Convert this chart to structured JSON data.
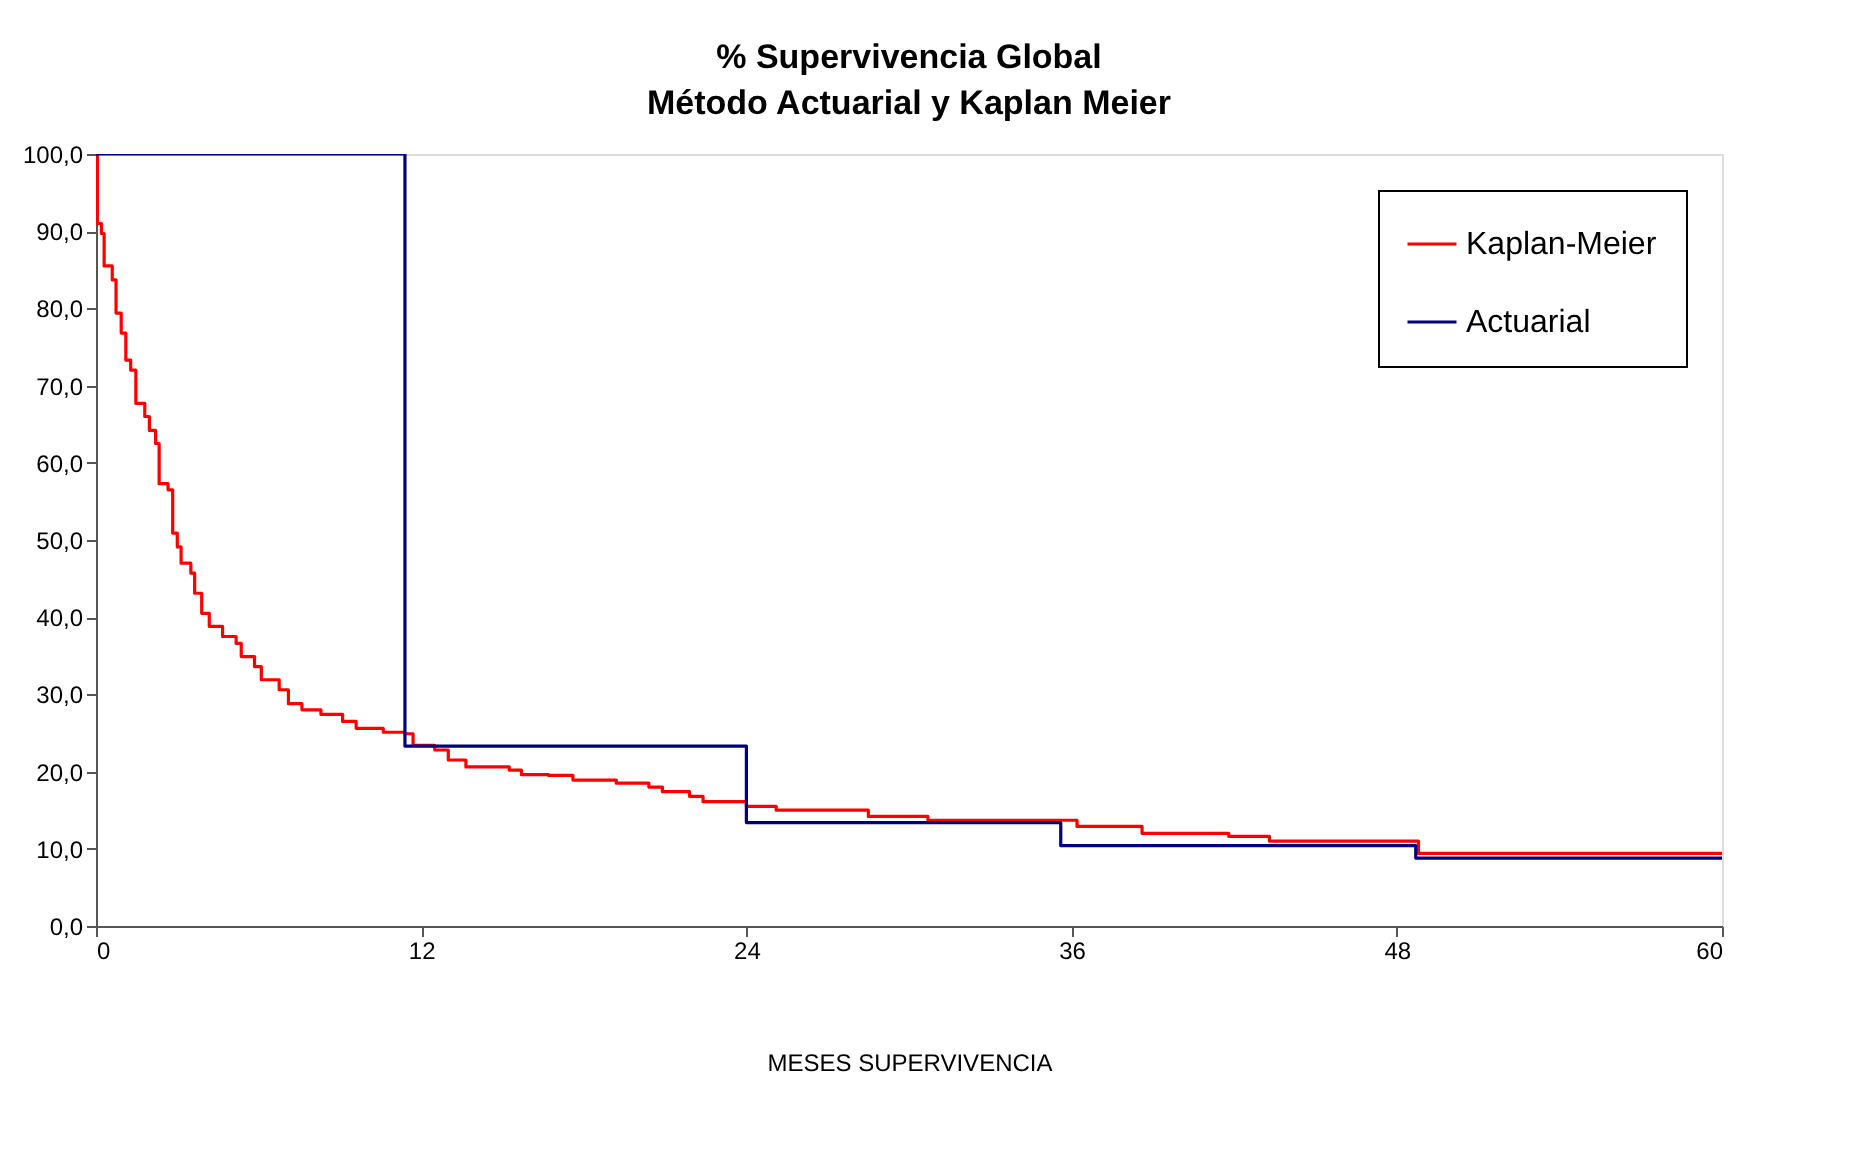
{
  "chart_data": {
    "type": "step",
    "title": "% Supervivencia Global",
    "subtitle": "Método Actuarial y Kaplan Meier",
    "xlabel": "MESES SUPERVIVENCIA",
    "xlim": [
      0,
      60
    ],
    "xticks": [
      0,
      12,
      24,
      36,
      48,
      60
    ],
    "ylim": [
      0,
      100
    ],
    "yticks": [
      {
        "value": 0,
        "label": "0,0"
      },
      {
        "value": 10,
        "label": "10,0"
      },
      {
        "value": 20,
        "label": "20,0"
      },
      {
        "value": 30,
        "label": "30,0"
      },
      {
        "value": 40,
        "label": "40,0"
      },
      {
        "value": 50,
        "label": "50,0"
      },
      {
        "value": 60,
        "label": "60,0"
      },
      {
        "value": 70,
        "label": "70,0"
      },
      {
        "value": 80,
        "label": "80,0"
      },
      {
        "value": 90,
        "label": "90,0"
      },
      {
        "value": 100,
        "label": "100,0"
      }
    ],
    "grid": false,
    "legend": "top right",
    "marker": "none",
    "line_style": "solid",
    "series": [
      {
        "name": "Kaplan-Meier",
        "color": "#ff0000",
        "x": [
          0,
          0.05,
          0.2,
          0.3,
          0.6,
          0.74,
          0.93,
          1.1,
          1.28,
          1.47,
          1.8,
          1.97,
          2.2,
          2.33,
          2.66,
          2.83,
          3.0,
          3.14,
          3.5,
          3.64,
          3.9,
          4.18,
          4.67,
          5.17,
          5.36,
          5.85,
          6.1,
          6.76,
          7.1,
          7.6,
          8.3,
          9.1,
          9.6,
          10.6,
          11.4,
          11.7,
          12.5,
          13.0,
          13.65,
          15.25,
          15.7,
          16.7,
          17.6,
          19.2,
          20.4,
          20.9,
          21.9,
          22.4,
          24.0,
          25.1,
          28.5,
          30.7,
          36.2,
          37.1,
          38.6,
          41.8,
          43.3,
          48.8,
          60
        ],
        "values": [
          100,
          91,
          89.7,
          85.5,
          83.7,
          79.4,
          76.8,
          73.3,
          72,
          67.7,
          66,
          64.2,
          62.5,
          57.3,
          56.5,
          50.9,
          49.1,
          47,
          45.7,
          43.1,
          40.5,
          38.8,
          37.5,
          36.6,
          34.9,
          33.6,
          31.9,
          30.6,
          28.8,
          28,
          27.4,
          26.5,
          25.6,
          25.1,
          24.9,
          23.4,
          22.8,
          21.5,
          20.6,
          20.2,
          19.6,
          19.5,
          18.9,
          18.5,
          18,
          17.4,
          16.8,
          16.1,
          15.5,
          15,
          14.2,
          13.7,
          12.9,
          12.9,
          12,
          11.6,
          11,
          9.4,
          9.4
        ]
      },
      {
        "name": "Actuarial",
        "color": "#000080",
        "x": [
          0,
          11.4,
          24,
          35.6,
          48.7,
          60
        ],
        "values": [
          100,
          23.3,
          13.4,
          10.4,
          8.8,
          8.8
        ]
      }
    ]
  }
}
